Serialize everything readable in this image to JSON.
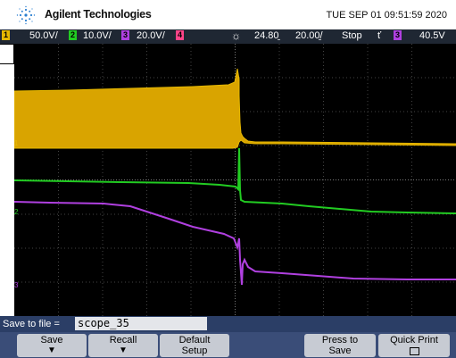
{
  "header": {
    "brand": "Agilent Technologies",
    "datetime": "TUE SEP 01 09:51:59 2020"
  },
  "status_bar": {
    "ch1_num": "1",
    "ch1_scale": "50.0V/",
    "ch2_num": "2",
    "ch2_scale": "10.0V/",
    "ch3_num": "3",
    "ch3_scale": "20.0V/",
    "ch4_num": "4",
    "time_offset": "24.80̱",
    "time_scale": "20.00̱/",
    "run_state": "Stop",
    "trigger_symbol": "ť",
    "trigger_channel": "3",
    "trigger_level": "40.5V"
  },
  "colors": {
    "ch1": "#e6b800",
    "ch2": "#22cc22",
    "ch3": "#b040e0",
    "ch4": "#ff4488"
  },
  "markers": {
    "ch1": "1",
    "ch2": "2",
    "ch3": "3"
  },
  "save_bar": {
    "label": "Save to file =",
    "filename": "scope_35"
  },
  "softkeys": [
    {
      "line1": "Save",
      "line2": "▼"
    },
    {
      "line1": "Recall",
      "line2": "▼"
    },
    {
      "line1": "Default",
      "line2": "Setup"
    },
    {
      "line1": "Press to",
      "line2": "Save"
    },
    {
      "line1": "Quick Print",
      "line2": ""
    }
  ]
}
